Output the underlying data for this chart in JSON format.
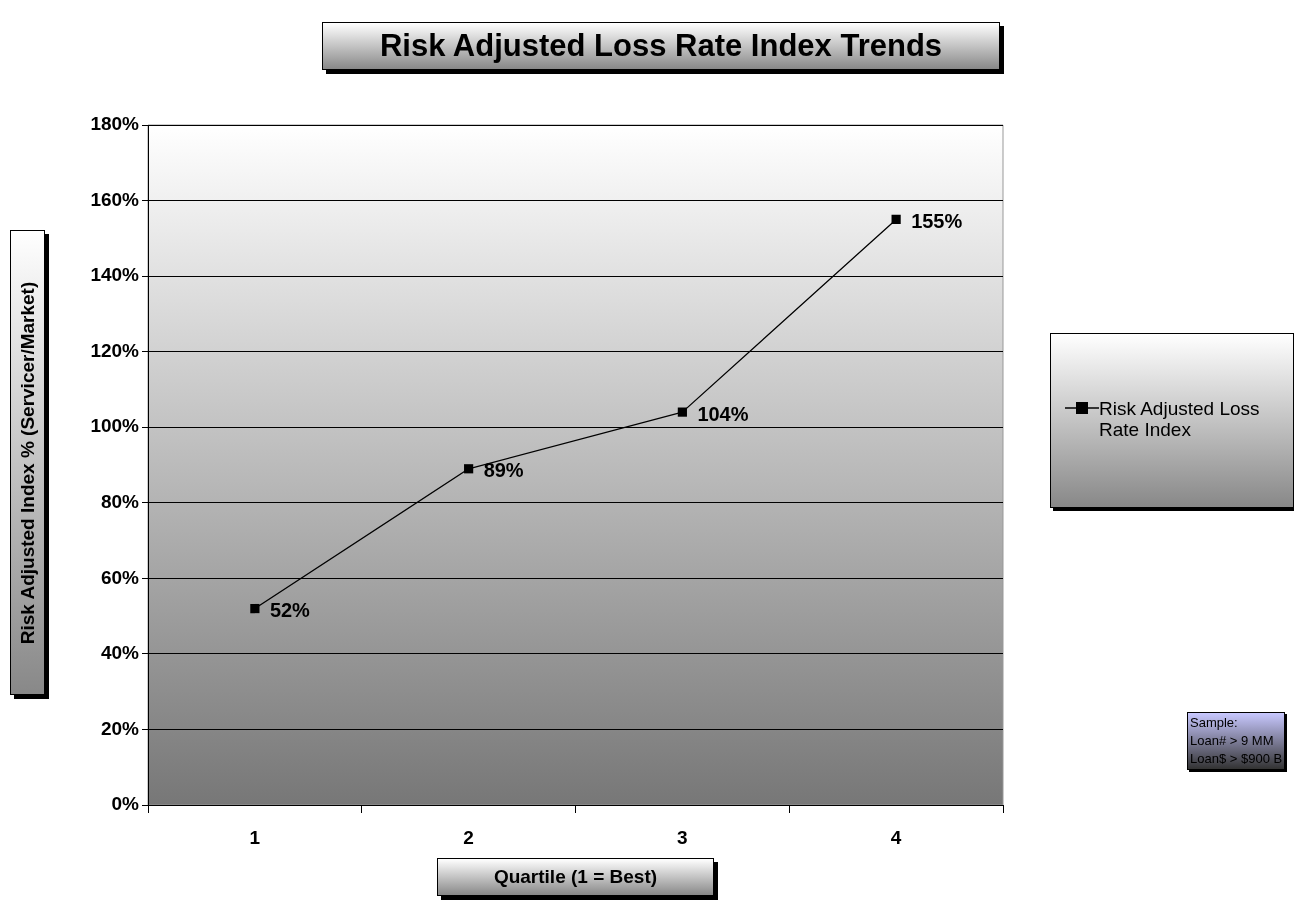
{
  "chart_data": {
    "type": "line",
    "title": "Risk Adjusted Loss Rate Index Trends",
    "xlabel": "Quartile (1 = Best)",
    "ylabel": "Risk Adjusted Index % (Servicer/Market)",
    "categories": [
      "1",
      "2",
      "3",
      "4"
    ],
    "series": [
      {
        "name": "Risk Adjusted Loss Rate Index",
        "color": "#000000",
        "values": [
          52,
          89,
          104,
          155
        ],
        "value_labels": [
          "52%",
          "89%",
          "104%",
          "155%"
        ]
      }
    ],
    "ylim": [
      0,
      180
    ],
    "yticks": [
      {
        "value": 0,
        "label": "0%"
      },
      {
        "value": 20,
        "label": "20%"
      },
      {
        "value": 40,
        "label": "40%"
      },
      {
        "value": 60,
        "label": "60%"
      },
      {
        "value": 80,
        "label": "80%"
      },
      {
        "value": 100,
        "label": "100%"
      },
      {
        "value": 120,
        "label": "120%"
      },
      {
        "value": 140,
        "label": "140%"
      },
      {
        "value": 160,
        "label": "160%"
      },
      {
        "value": 180,
        "label": "180%"
      }
    ],
    "grid": "y",
    "legend": "right",
    "marker": "square",
    "line_style": "solid",
    "annotations": [
      "Sample:",
      "Loan# > 9 MM",
      "Loan$ > $900 B"
    ]
  }
}
